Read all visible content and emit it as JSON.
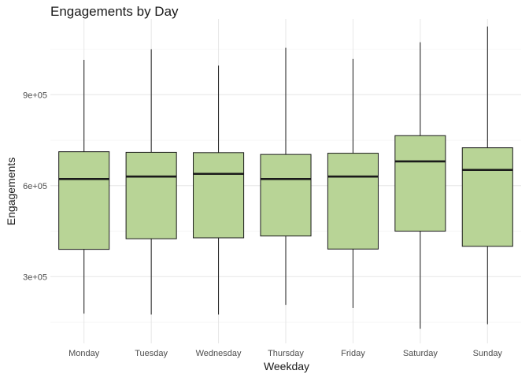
{
  "chart_data": {
    "type": "boxplot",
    "title": "Engagements by Day",
    "xlabel": "Weekday",
    "ylabel": "Engagements",
    "ylim": [
      80000,
      1150000
    ],
    "y_ticks": [
      300000,
      600000,
      900000
    ],
    "y_tick_labels": [
      "3e+05",
      "6e+05",
      "9e+05"
    ],
    "grid": true,
    "legend": "none",
    "box_color": "#b8d496",
    "categories": [
      "Monday",
      "Tuesday",
      "Wednesday",
      "Thursday",
      "Friday",
      "Saturday",
      "Sunday"
    ],
    "boxes": [
      {
        "min": 178000,
        "q1": 390000,
        "median": 622000,
        "q3": 712000,
        "max": 1015000
      },
      {
        "min": 175000,
        "q1": 425000,
        "median": 630000,
        "q3": 710000,
        "max": 1050000
      },
      {
        "min": 175000,
        "q1": 428000,
        "median": 639000,
        "q3": 709000,
        "max": 996000
      },
      {
        "min": 207000,
        "q1": 434000,
        "median": 622000,
        "q3": 703000,
        "max": 1055000
      },
      {
        "min": 197000,
        "q1": 391000,
        "median": 630000,
        "q3": 707000,
        "max": 1018000
      },
      {
        "min": 128000,
        "q1": 450000,
        "median": 680000,
        "q3": 765000,
        "max": 1073000
      },
      {
        "min": 143000,
        "q1": 400000,
        "median": 652000,
        "q3": 725000,
        "max": 1125000
      }
    ]
  }
}
